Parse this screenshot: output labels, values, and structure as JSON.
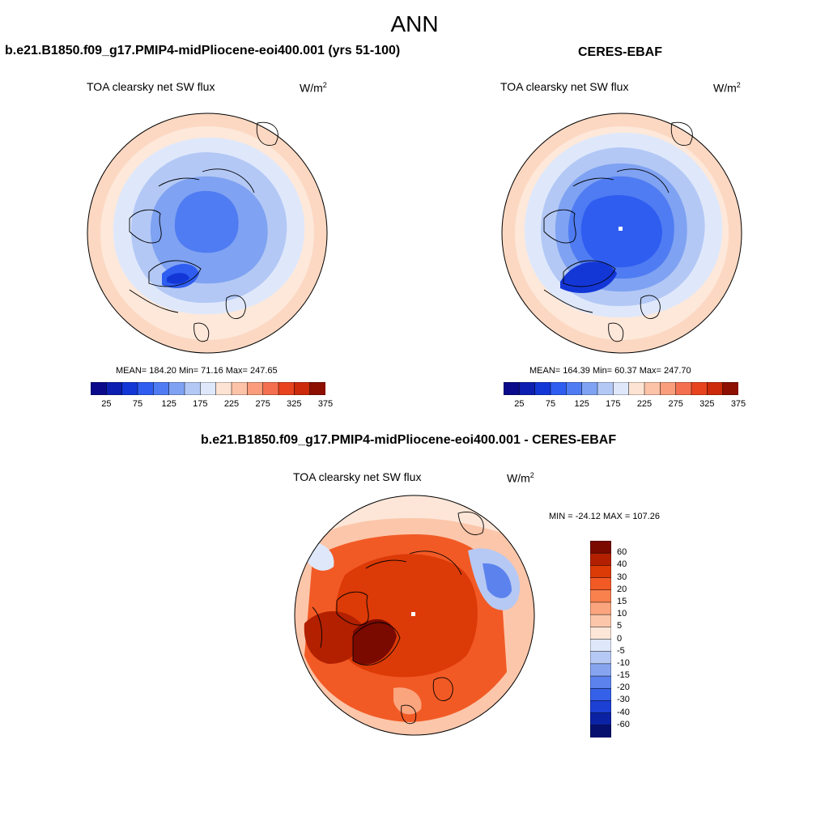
{
  "figure": {
    "title": "ANN",
    "panel_left_title": "b.e21.B1850.f09_g17.PMIP4-midPliocene-eoi400.001 (yrs 51-100)",
    "panel_right_title": "CERES-EBAF",
    "panel_diff_title": "b.e21.B1850.f09_g17.PMIP4-midPliocene-eoi400.001 - CERES-EBAF"
  },
  "maps": {
    "left": {
      "variable": "TOA clearsky net SW flux",
      "units_base": "W/m",
      "units_exp": "2",
      "stats": "MEAN= 184.20  Min=  71.16  Max= 247.65"
    },
    "right": {
      "variable": "TOA clearsky net SW flux",
      "units_base": "W/m",
      "units_exp": "2",
      "stats": "MEAN= 164.39  Min=  60.37  Max= 247.70"
    },
    "diff": {
      "variable": "TOA clearsky net SW flux",
      "units_base": "W/m",
      "units_exp": "2",
      "stats": "MIN = -24.12 MAX = 107.26"
    }
  },
  "colorbars": {
    "abs_labels": [
      "25",
      "75",
      "125",
      "175",
      "225",
      "275",
      "325",
      "375"
    ],
    "abs_colors": [
      "#0a0a8a",
      "#0d1fb0",
      "#1336d6",
      "#2f5df0",
      "#4f7cf2",
      "#7fa2f2",
      "#b3c8f5",
      "#dfe8fb",
      "#fde3d3",
      "#fcc3a8",
      "#f99d7c",
      "#f46f4f",
      "#e8431f",
      "#cc2a0a",
      "#8c0f02"
    ],
    "diff_labels": [
      "60",
      "40",
      "30",
      "20",
      "15",
      "10",
      "5",
      "0",
      "-5",
      "-10",
      "-15",
      "-20",
      "-30",
      "-40",
      "-60"
    ],
    "diff_colors": [
      "#7a0a00",
      "#b22000",
      "#dc3a07",
      "#f25a25",
      "#f8814e",
      "#fba57f",
      "#fcc6aa",
      "#fde6d8",
      "#dfe8fb",
      "#b6c9f4",
      "#87a5ef",
      "#5c82ee",
      "#3561e8",
      "#1c3fd4",
      "#0b22a5",
      "#06106e"
    ]
  }
}
